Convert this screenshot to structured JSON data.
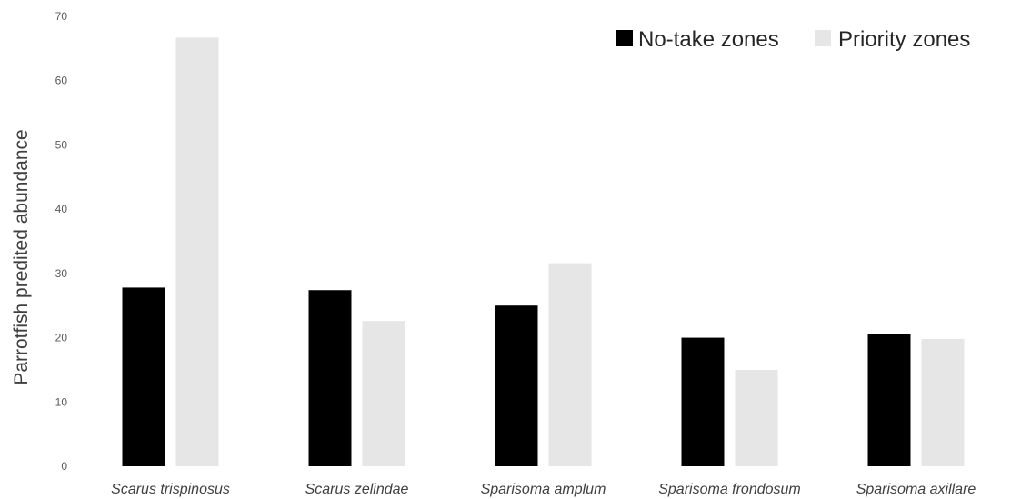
{
  "chart_data": {
    "type": "bar",
    "title": "",
    "xlabel": "",
    "ylabel": "Parrotfish predited abundance",
    "ylim": [
      0,
      70
    ],
    "yticks": [
      "0",
      "10",
      "20",
      "30",
      "40",
      "50",
      "60",
      "70"
    ],
    "grid": false,
    "legend_position": "top-right",
    "categories": [
      "Scarus trispinosus",
      "Scarus zelindae",
      "Sparisoma amplum",
      "Sparisoma frondosum",
      "Sparisoma axillare"
    ],
    "series": [
      {
        "name": "No-take zones",
        "color": "#000000",
        "values": [
          27.8,
          27.4,
          25.0,
          20.0,
          20.6
        ]
      },
      {
        "name": "Priority zones",
        "color": "#e6e6e6",
        "values": [
          66.7,
          22.6,
          31.6,
          15.0,
          19.8
        ]
      }
    ]
  }
}
